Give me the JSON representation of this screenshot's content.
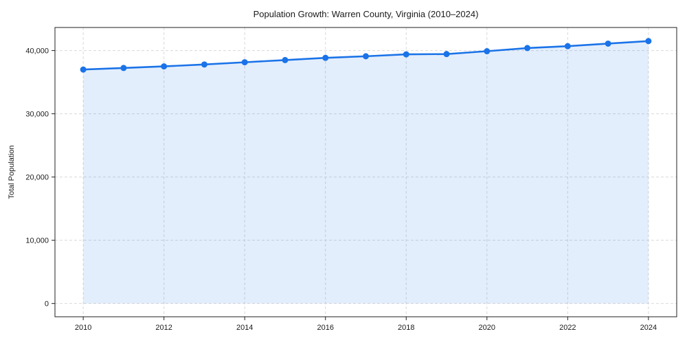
{
  "chart_data": {
    "type": "line",
    "title": "Population Growth: Warren County, Virginia (2010–2024)",
    "xlabel": "",
    "ylabel": "Total Population",
    "x": [
      2010,
      2011,
      2012,
      2013,
      2014,
      2015,
      2016,
      2017,
      2018,
      2019,
      2020,
      2021,
      2022,
      2023,
      2024
    ],
    "series": [
      {
        "name": "Total Population",
        "values": [
          37000,
          37250,
          37500,
          37800,
          38150,
          38500,
          38850,
          39100,
          39400,
          39450,
          39900,
          40400,
          40700,
          41100,
          41500
        ]
      }
    ],
    "x_ticks": [
      2010,
      2012,
      2014,
      2016,
      2018,
      2020,
      2022,
      2024
    ],
    "x_tick_labels": [
      "2010",
      "2012",
      "2014",
      "2016",
      "2018",
      "2020",
      "2022",
      "2024"
    ],
    "y_ticks": [
      0,
      10000,
      20000,
      30000,
      40000
    ],
    "y_tick_labels": [
      "0",
      "10,000",
      "20,000",
      "30,000",
      "40,000"
    ],
    "xlim": [
      2009.3,
      2024.7
    ],
    "ylim": [
      -2100,
      43650
    ],
    "grid": true,
    "grid_style": "dashed",
    "legend": false,
    "area_fill_to": 0,
    "colors": {
      "line": "#1a73e8",
      "marker": "#1a73e8",
      "fill": "#1a73e8",
      "fill_opacity": 0.12,
      "grid": "#d9d9d9",
      "spine": "#1f1f1f",
      "text": "#1a1a1a",
      "background": "#ffffff"
    }
  }
}
